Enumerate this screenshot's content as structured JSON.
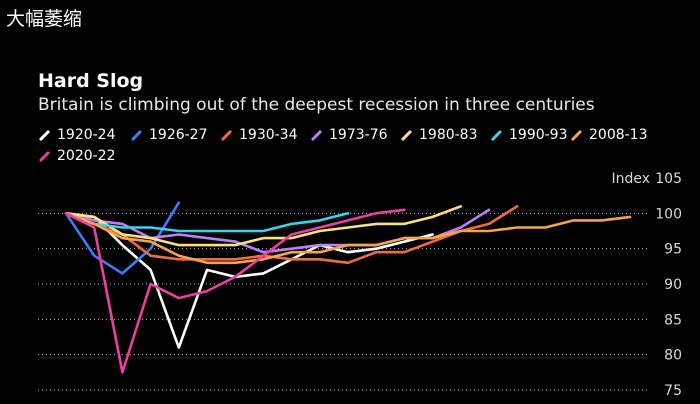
{
  "caption": "大幅萎缩",
  "chart_data": {
    "type": "line",
    "title": "Hard Slog",
    "subtitle": "Britain is climbing out of the deepest recession in three centuries",
    "unit_label": "Index",
    "ylim": [
      75,
      105
    ],
    "yticks": [
      105,
      100,
      95,
      90,
      85,
      80,
      75
    ],
    "xlim": [
      0,
      20
    ],
    "grid": true,
    "legend_position": "top",
    "series": [
      {
        "name": "1920-24",
        "color": "#ffffff",
        "values": [
          100,
          99.5,
          95.5,
          92,
          81,
          92,
          91,
          91.5,
          93.5,
          95.5,
          94.5,
          95,
          96,
          97
        ]
      },
      {
        "name": "1926-27",
        "color": "#3b7dff",
        "values": [
          100,
          94,
          91.5,
          95,
          101.5
        ]
      },
      {
        "name": "1930-34",
        "color": "#f26b3c",
        "values": [
          100,
          98.5,
          97,
          94,
          93.5,
          93.5,
          93.5,
          94,
          93.5,
          93.5,
          93,
          94.5,
          94.5,
          96,
          97.5,
          98.5,
          101
        ]
      },
      {
        "name": "1973-76",
        "color": "#c17cf7",
        "values": [
          100,
          99,
          98.5,
          96.5,
          97,
          96.5,
          96,
          94.5,
          95,
          95.5,
          95.5,
          95.5,
          96.5,
          96.5,
          98,
          100.5
        ]
      },
      {
        "name": "1980-83",
        "color": "#f7e37a",
        "values": [
          100,
          99.5,
          97,
          96.5,
          95.5,
          95.5,
          95.5,
          96.5,
          96.5,
          97.5,
          98,
          98.5,
          98.5,
          99.5,
          101
        ]
      },
      {
        "name": "1990-93",
        "color": "#36d4ee",
        "values": [
          100,
          98.5,
          98,
          98,
          97.5,
          97.5,
          97.5,
          97.5,
          98.5,
          99,
          100
        ]
      },
      {
        "name": "2008-13",
        "color": "#f7a34a",
        "values": [
          100,
          98.5,
          96.5,
          96,
          94,
          93,
          93,
          93.5,
          94.5,
          94.5,
          95.5,
          95.5,
          96.5,
          96.5,
          97.5,
          97.5,
          98,
          98,
          99,
          99,
          99.5
        ]
      },
      {
        "name": "2020-22",
        "color": "#ed3ea4",
        "values": [
          100,
          98,
          77.5,
          90,
          88,
          89,
          91,
          94,
          97,
          98,
          99,
          100,
          100.5
        ]
      }
    ]
  }
}
